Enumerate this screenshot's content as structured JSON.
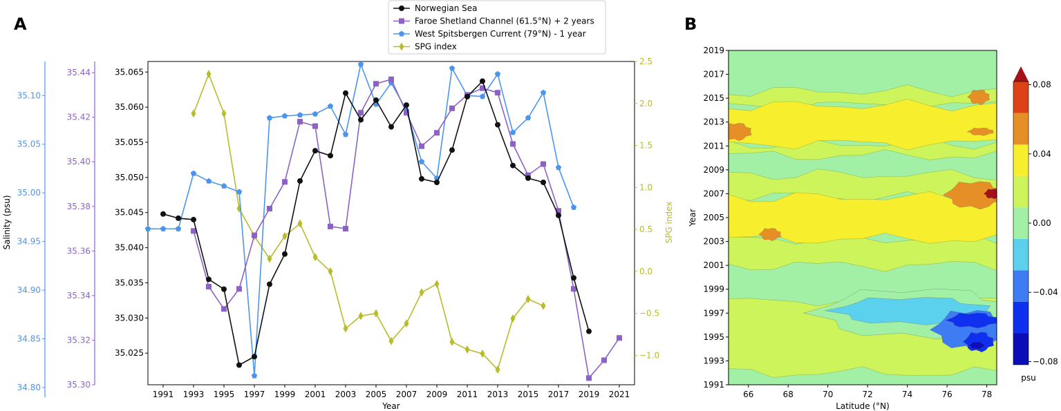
{
  "panels": {
    "a": "A",
    "b": "B"
  },
  "colors": {
    "black": "#111111",
    "purple": "#8c63c4",
    "blue": "#4c95ee",
    "olive": "#b9bb2a",
    "contour_levels": [
      "#0c0fb8",
      "#1030f0",
      "#3d7cf2",
      "#5bd1ee",
      "#a1f0a6",
      "#cdf45a",
      "#f7ee2e",
      "#e58f26",
      "#dd4117",
      "#a3121a"
    ]
  },
  "chart_data": [
    {
      "type": "line",
      "title": "",
      "xlabel": "Year",
      "xlim": [
        1990,
        2022
      ],
      "x_ticks": [
        "1991",
        "1993",
        "1995",
        "1997",
        "1999",
        "2001",
        "2003",
        "2005",
        "2007",
        "2009",
        "2011",
        "2013",
        "2015",
        "2017",
        "2019",
        "2021"
      ],
      "axes": {
        "norwegian": {
          "ylim": [
            35.0205,
            35.0665
          ],
          "ticks": [
            "35.025",
            "35.030",
            "35.035",
            "35.040",
            "35.045",
            "35.050",
            "35.055",
            "35.060",
            "35.065"
          ]
        },
        "faroe": {
          "ylim": [
            35.3,
            35.445
          ],
          "ticks": [
            "35.30",
            "35.32",
            "35.34",
            "35.36",
            "35.38",
            "35.40",
            "35.42",
            "35.44"
          ]
        },
        "spitsbergen": {
          "ylim": [
            34.79,
            35.135
          ],
          "ticks": [
            "34.80",
            "34.85",
            "34.90",
            "34.95",
            "35.00",
            "35.05",
            "35.10"
          ]
        },
        "spg": {
          "ylim": [
            -1.35,
            2.5
          ],
          "ticks": [
            "−1.0",
            "−0.5",
            "0.0",
            "0.5",
            "1.0",
            "1.5",
            "2.0",
            "2.5"
          ]
        }
      },
      "ylabel_left": "Salinity (psu)",
      "ylabel_right": "SPG index",
      "legend": [
        "Norwegian Sea",
        "Faroe Shetland Channel (61.5°N) + 2 years",
        "West Spitsbergen Current (79°N) - 1 year",
        "SPG index"
      ],
      "series": [
        {
          "name": "Norwegian Sea",
          "axis": "norwegian",
          "x": [
            1991,
            1992,
            1993,
            1994,
            1995,
            1996,
            1997,
            1998,
            1999,
            2000,
            2001,
            2002,
            2003,
            2004,
            2005,
            2006,
            2007,
            2008,
            2009,
            2010,
            2011,
            2012,
            2013,
            2014,
            2015,
            2016,
            2017,
            2018,
            2019
          ],
          "values": [
            35.0448,
            35.0442,
            35.044,
            35.0355,
            35.0341,
            35.0233,
            35.0245,
            35.0348,
            35.0391,
            35.0495,
            35.0538,
            35.0531,
            35.062,
            35.0582,
            35.061,
            35.0572,
            35.0603,
            35.0498,
            35.0493,
            35.0539,
            35.0615,
            35.0637,
            35.0575,
            35.0517,
            35.0499,
            35.0493,
            35.0446,
            35.0357,
            35.0281
          ]
        },
        {
          "name": "Faroe Shetland Channel (61.5°N) + 2 years",
          "axis": "faroe",
          "x": [
            1993,
            1994,
            1995,
            1996,
            1997,
            1998,
            1999,
            2000,
            2001,
            2002,
            2003,
            2004,
            2005,
            2006,
            2007,
            2008,
            2009,
            2010,
            2011,
            2012,
            2013,
            2014,
            2015,
            2016,
            2017,
            2018,
            2019,
            2020,
            2021
          ],
          "values": [
            35.369,
            35.344,
            35.334,
            35.343,
            35.367,
            35.379,
            35.391,
            35.418,
            35.416,
            35.371,
            35.37,
            35.422,
            35.435,
            35.437,
            35.422,
            35.407,
            35.413,
            35.424,
            35.43,
            35.433,
            35.431,
            35.408,
            35.394,
            35.399,
            35.378,
            35.343,
            35.303,
            35.311,
            35.321
          ]
        },
        {
          "name": "West Spitsbergen Current (79°N) - 1 year",
          "axis": "spitsbergen",
          "x": [
            1990,
            1991,
            1992,
            1993,
            1994,
            1995,
            1996,
            1997,
            1998,
            1999,
            2000,
            2001,
            2002,
            2003,
            2004,
            2005,
            2006,
            2007,
            2008,
            2009,
            2010,
            2011,
            2012,
            2013,
            2014,
            2015,
            2016,
            2017,
            2018
          ],
          "values": [
            34.963,
            34.963,
            34.963,
            35.02,
            35.012,
            35.007,
            35.001,
            34.812,
            35.077,
            35.079,
            35.08,
            35.081,
            35.089,
            35.06,
            35.132,
            35.091,
            35.113,
            35.085,
            35.032,
            35.015,
            35.128,
            35.1,
            35.099,
            35.122,
            35.062,
            35.077,
            35.103,
            35.026,
            34.985
          ]
        },
        {
          "name": "SPG index",
          "axis": "spg",
          "x": [
            1993,
            1994,
            1995,
            1996,
            1997,
            1998,
            1999,
            2000,
            2001,
            2002,
            2003,
            2004,
            2005,
            2006,
            2007,
            2008,
            2009,
            2010,
            2011,
            2012,
            2013,
            2014,
            2015,
            2016
          ],
          "values": [
            1.88,
            2.35,
            1.88,
            0.75,
            0.42,
            0.15,
            0.42,
            0.57,
            0.17,
            0.0,
            -0.68,
            -0.53,
            -0.5,
            -0.83,
            -0.62,
            -0.25,
            -0.15,
            -0.84,
            -0.93,
            -0.98,
            -1.17,
            -0.56,
            -0.33,
            -0.41
          ]
        }
      ]
    },
    {
      "type": "heatmap",
      "title": "",
      "xlabel": "Latitude (°N)",
      "ylabel": "Year",
      "xlim": [
        65,
        78.5
      ],
      "ylim": [
        1991,
        2019
      ],
      "x_ticks": [
        "66",
        "68",
        "70",
        "72",
        "74",
        "76",
        "78"
      ],
      "y_ticks": [
        "1991",
        "1993",
        "1995",
        "1997",
        "1999",
        "2001",
        "2003",
        "2005",
        "2007",
        "2009",
        "2011",
        "2013",
        "2015",
        "2017",
        "2019"
      ],
      "colorbar": {
        "unit": "psu",
        "levels": [
          -0.1,
          -0.08,
          -0.06,
          -0.04,
          -0.02,
          0.0,
          0.02,
          0.04,
          0.06,
          0.08,
          0.1
        ],
        "tick_labels": [
          "−0.08",
          "−0.04",
          "0.00",
          "0.04",
          "0.08"
        ]
      },
      "regions": [
        {
          "level": 4,
          "desc": "green background",
          "bands": [
            [
              1991,
              1992
            ],
            [
              1998,
              2001
            ],
            [
              2008.6,
              2010.2
            ],
            [
              2015.6,
              2019
            ]
          ]
        },
        {
          "level": 5,
          "desc": "yellow-green",
          "bands": [
            [
              1992,
              1998
            ],
            [
              2001,
              2003.2
            ],
            [
              2006.7,
              2008.6
            ],
            [
              2010.2,
              2011.2
            ],
            [
              2014.4,
              2015.6
            ]
          ]
        },
        {
          "level": 6,
          "desc": "yellow",
          "bands": [
            [
              2003.2,
              2006.7
            ],
            [
              2011.2,
              2014.4
            ]
          ]
        }
      ],
      "features": [
        {
          "level": 7,
          "lat": 77.5,
          "year": 2006.9,
          "desc": "orange patch"
        },
        {
          "level": 9,
          "lat": 78.3,
          "year": 2007.0,
          "desc": "dark red core"
        },
        {
          "level": 1,
          "lat": 77.3,
          "year": 1995.2,
          "desc": "blue core"
        },
        {
          "level": 0,
          "lat": 77.5,
          "year": 1994.4,
          "desc": "dark blue core"
        },
        {
          "level": 7,
          "lat": 65.3,
          "year": 2012.2,
          "desc": "orange patch"
        },
        {
          "level": 7,
          "lat": 67.1,
          "year": 2003.6,
          "desc": "orange patch"
        }
      ]
    }
  ]
}
